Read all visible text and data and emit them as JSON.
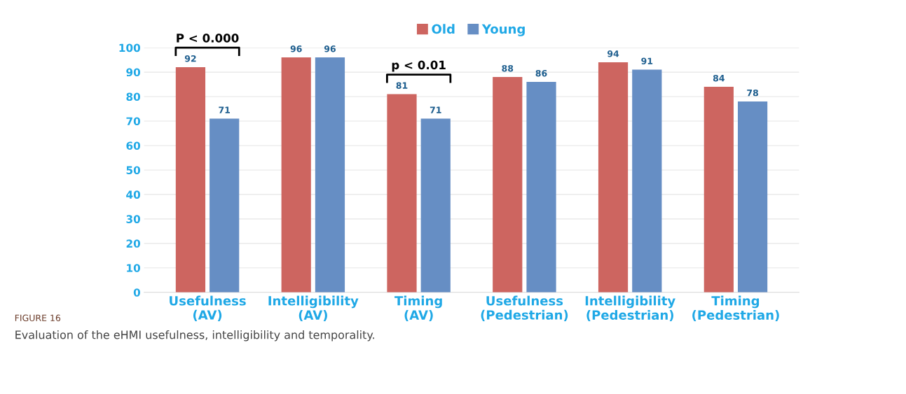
{
  "chart_data": {
    "type": "bar",
    "categories": [
      "Usefulness\n(AV)",
      "Intelligibility\n(AV)",
      "Timing\n(AV)",
      "Usefulness\n(Pedestrian)",
      "Intelligibility\n(Pedestrian)",
      "Timing\n(Pedestrian)"
    ],
    "series": [
      {
        "name": "Old",
        "color": "#cd6560",
        "values": [
          92,
          96,
          81,
          88,
          94,
          84
        ]
      },
      {
        "name": "Young",
        "color": "#668ec4",
        "values": [
          71,
          96,
          71,
          86,
          91,
          78
        ]
      }
    ],
    "ylim": [
      0,
      100
    ],
    "yticks": [
      0,
      10,
      20,
      30,
      40,
      50,
      60,
      70,
      80,
      90,
      100
    ],
    "grid": "y",
    "legend": "top",
    "data_labels": true,
    "annotations": [
      "P < 0.000",
      "p < 0.01",
      "FIGURE 16",
      "Evaluation of the eHMI usefulness, intelligibility and temporality."
    ]
  }
}
